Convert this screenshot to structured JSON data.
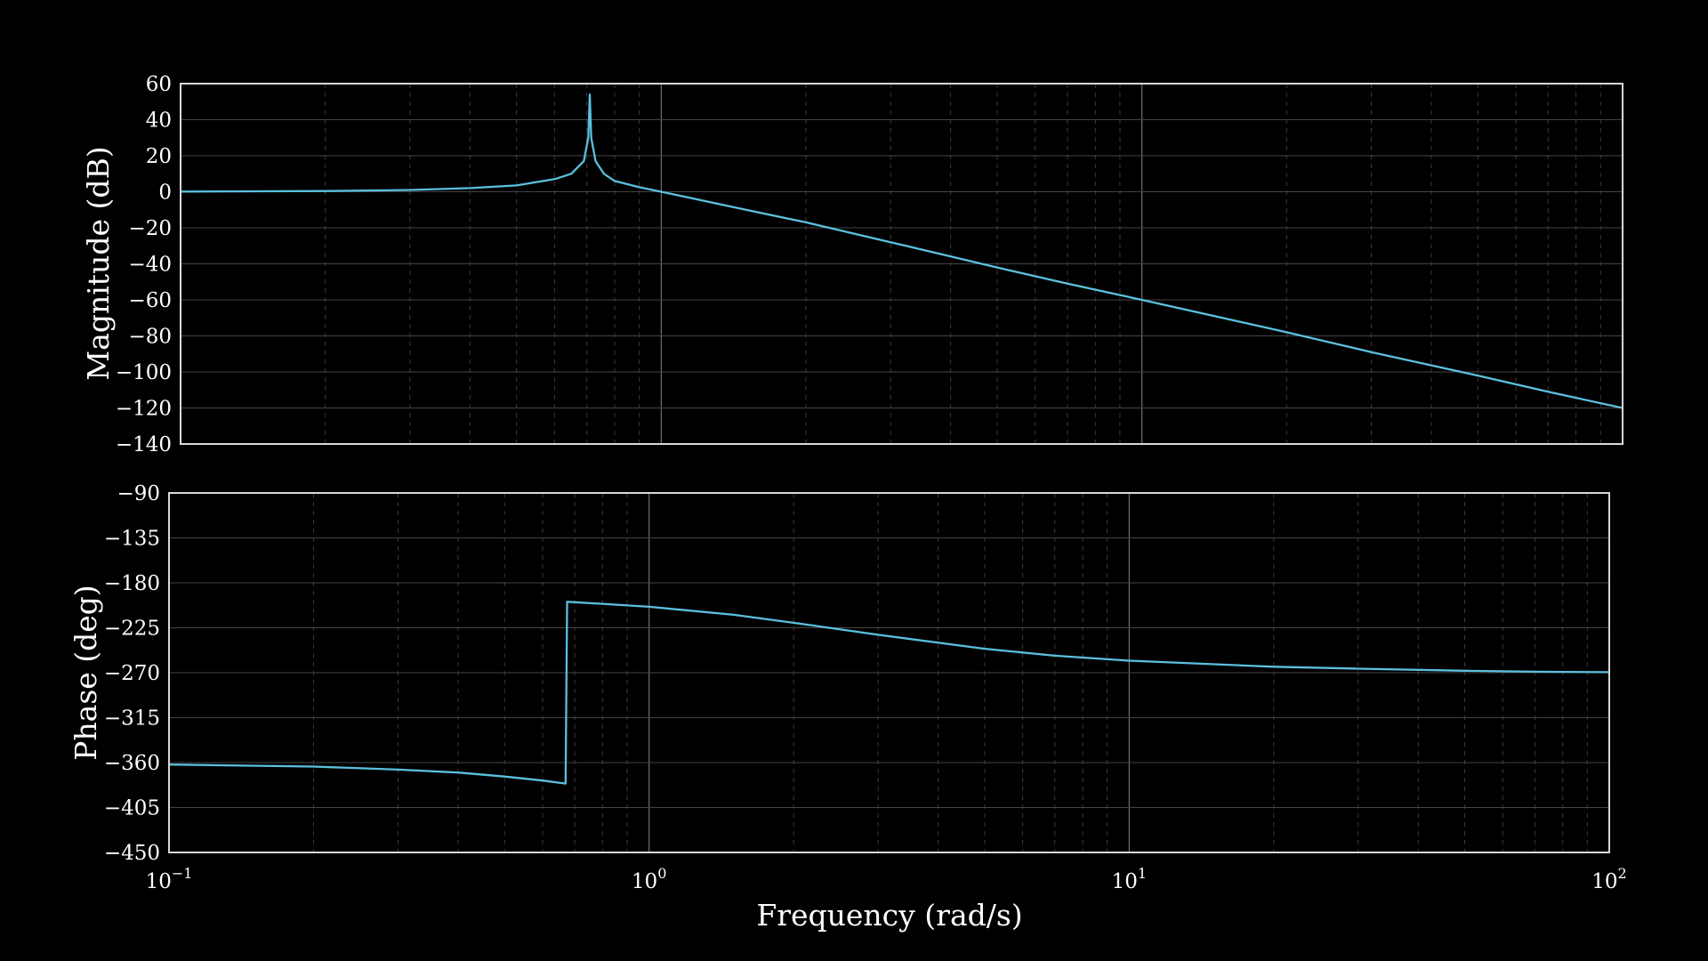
{
  "chart_data": [
    {
      "type": "line",
      "panel": "magnitude",
      "ylabel": "Magnitude (dB)",
      "xlabel": "",
      "x_scale": "log",
      "xlim": [
        0.1,
        100
      ],
      "ylim": [
        -140,
        60
      ],
      "yticks": [
        60,
        40,
        20,
        0,
        -20,
        -40,
        -60,
        -80,
        -100,
        -120,
        -140
      ],
      "ytick_labels": [
        "60",
        "40",
        "20",
        "0",
        "−20",
        "−40",
        "−60",
        "−80",
        "−100",
        "−120",
        "−140"
      ],
      "grid": true,
      "series": [
        {
          "color": "#5bc0de",
          "x": [
            0.1,
            0.2,
            0.3,
            0.4,
            0.5,
            0.6,
            0.65,
            0.69,
            0.705,
            0.71,
            0.715,
            0.73,
            0.76,
            0.8,
            0.9,
            1.0,
            1.5,
            2,
            3,
            5,
            7,
            10,
            20,
            30,
            50,
            70,
            100
          ],
          "y": [
            0.1,
            0.4,
            1.0,
            2.0,
            3.5,
            7.0,
            10.0,
            17.0,
            30.0,
            54.0,
            30.0,
            17.0,
            10.0,
            6.0,
            2.5,
            0.0,
            -10.0,
            -17.0,
            -28.0,
            -42.0,
            -51.0,
            -60.0,
            -78.0,
            -89.0,
            -102.0,
            -111.0,
            -120.0
          ]
        }
      ]
    },
    {
      "type": "line",
      "panel": "phase",
      "ylabel": "Phase (deg)",
      "xlabel": "Frequency (rad/s)",
      "x_scale": "log",
      "xlim": [
        0.1,
        100
      ],
      "ylim": [
        -450,
        -90
      ],
      "yticks": [
        -90,
        -135,
        -180,
        -225,
        -270,
        -315,
        -360,
        -405,
        -450
      ],
      "ytick_labels": [
        "−90",
        "−135",
        "−180",
        "−225",
        "−270",
        "−315",
        "−360",
        "−405",
        "−450"
      ],
      "xticks": [
        0.1,
        1,
        10,
        100
      ],
      "xtick_labels": [
        {
          "base": "10",
          "exp": "−1"
        },
        {
          "base": "10",
          "exp": "0"
        },
        {
          "base": "10",
          "exp": "1"
        },
        {
          "base": "10",
          "exp": "2"
        }
      ],
      "grid": true,
      "series": [
        {
          "color": "#5bc0de",
          "x": [
            0.1,
            0.2,
            0.3,
            0.4,
            0.5,
            0.6,
            0.67,
            0.675,
            0.8,
            1.0,
            1.5,
            2,
            3,
            5,
            7,
            10,
            20,
            30,
            50,
            70,
            100
          ],
          "y": [
            -362,
            -364,
            -367,
            -370,
            -374,
            -378,
            -381,
            -199,
            -201,
            -204,
            -212,
            -220,
            -232,
            -246,
            -253,
            -258,
            -264,
            -266,
            -268,
            -269,
            -269.5
          ]
        }
      ]
    }
  ]
}
